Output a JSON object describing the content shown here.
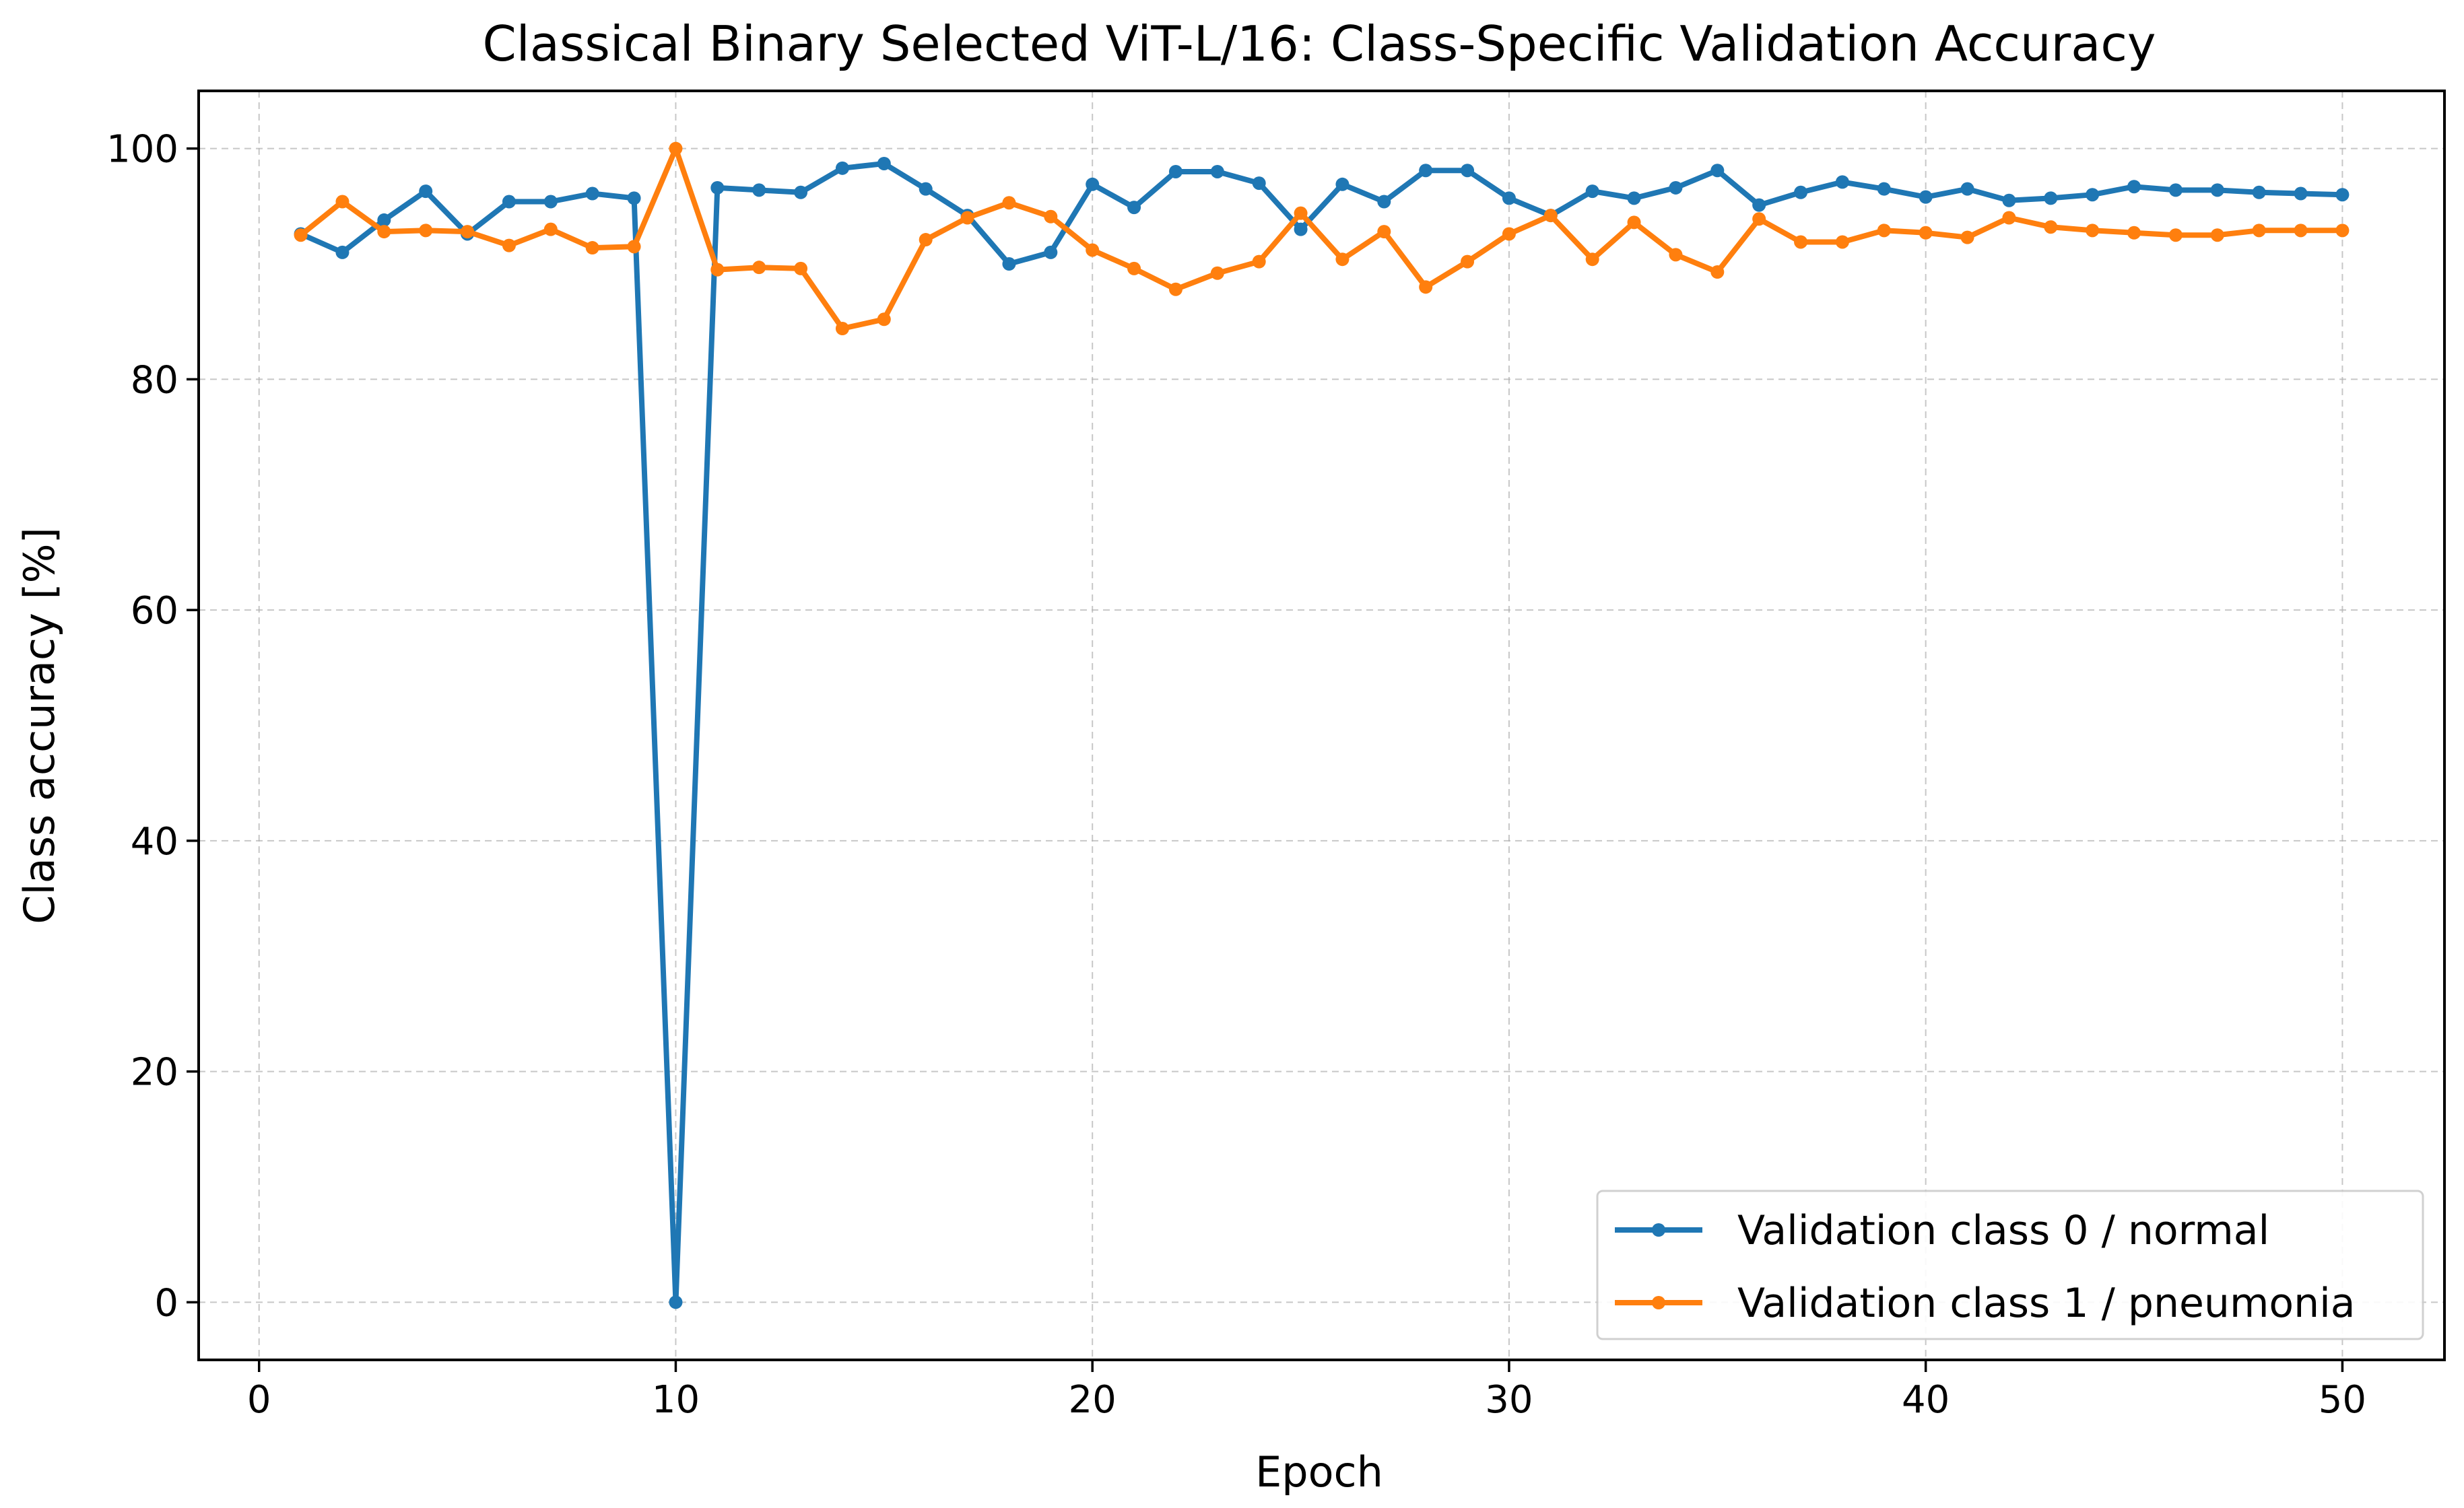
{
  "chart_data": {
    "type": "line",
    "title": "Classical Binary Selected ViT-L/16: Class-Specific Validation Accuracy",
    "xlabel": "Epoch",
    "ylabel": "Class accuracy [%]",
    "xlim": [
      -1.45,
      52.45
    ],
    "ylim": [
      -5,
      105
    ],
    "xticks": [
      0,
      10,
      20,
      30,
      40,
      50
    ],
    "yticks": [
      0,
      20,
      40,
      60,
      80,
      100
    ],
    "grid": true,
    "legend_position": "lower-right",
    "x": [
      1,
      2,
      3,
      4,
      5,
      6,
      7,
      8,
      9,
      10,
      11,
      12,
      13,
      14,
      15,
      16,
      17,
      18,
      19,
      20,
      21,
      22,
      23,
      24,
      25,
      26,
      27,
      28,
      29,
      30,
      31,
      32,
      33,
      34,
      35,
      36,
      37,
      38,
      39,
      40,
      41,
      42,
      43,
      44,
      45,
      46,
      47,
      48,
      49,
      50
    ],
    "series": [
      {
        "name": "Validation class 0 / normal",
        "color": "#1f77b4",
        "values": [
          92.6,
          91.0,
          93.8,
          96.3,
          92.6,
          95.4,
          95.4,
          96.1,
          95.7,
          0.0,
          96.6,
          96.4,
          96.2,
          98.3,
          98.7,
          96.5,
          94.2,
          90.0,
          91.0,
          96.9,
          94.9,
          98.0,
          98.0,
          97.0,
          93.0,
          96.9,
          95.4,
          98.1,
          98.1,
          95.7,
          94.2,
          96.3,
          95.7,
          96.6,
          98.1,
          95.1,
          96.2,
          97.1,
          96.5,
          95.8,
          96.5,
          95.5,
          95.7,
          96.0,
          96.7,
          96.4,
          96.4,
          96.2,
          96.1,
          96.0
        ]
      },
      {
        "name": "Validation class 1 / pneumonia",
        "color": "#ff7f0e",
        "values": [
          92.5,
          95.4,
          92.8,
          92.9,
          92.8,
          91.6,
          93.0,
          91.4,
          91.5,
          100.0,
          89.5,
          89.7,
          89.6,
          84.4,
          85.2,
          92.1,
          94.0,
          95.3,
          94.1,
          91.2,
          89.6,
          87.8,
          89.2,
          90.2,
          94.4,
          90.4,
          92.8,
          88.0,
          90.2,
          92.6,
          94.2,
          90.4,
          93.6,
          90.8,
          89.3,
          93.9,
          91.9,
          91.9,
          92.9,
          92.7,
          92.3,
          94.0,
          93.2,
          92.9,
          92.7,
          92.5,
          92.5,
          92.9,
          92.9,
          92.9
        ]
      }
    ]
  }
}
